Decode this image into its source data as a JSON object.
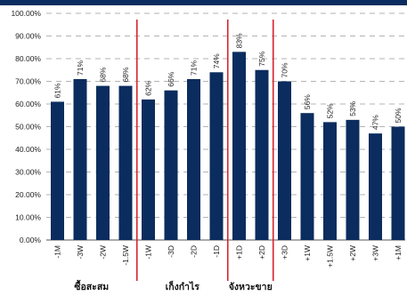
{
  "accent_color": "#0b2c5e",
  "separator_color": "#d9232e",
  "chart_data": {
    "type": "bar",
    "title": "",
    "xlabel": "",
    "ylabel": "",
    "ylim": [
      0,
      100
    ],
    "yticks": [
      0,
      10,
      20,
      30,
      40,
      50,
      60,
      70,
      80,
      90,
      100
    ],
    "ytick_labels": [
      "0.00%",
      "10.00%",
      "20.00%",
      "30.00%",
      "40.00%",
      "50.00%",
      "60.00%",
      "70.00%",
      "80.00%",
      "90.00%",
      "100.00%"
    ],
    "grid": "horizontal dashed",
    "bar_color": "#0b2c5e",
    "categories": [
      "-1M",
      "-3W",
      "-2W",
      "-1.5W",
      "-1W",
      "-3D",
      "-2D",
      "-1D",
      "+1D",
      "+2D",
      "+3D",
      "+1W",
      "+1.5W",
      "+2W",
      "+3W",
      "+1M"
    ],
    "values": [
      61,
      71,
      68,
      68,
      62,
      66,
      71,
      74,
      83,
      75,
      70,
      56,
      52,
      53,
      47,
      50
    ],
    "data_labels": [
      "61%",
      "71%",
      "68%",
      "68%",
      "62%",
      "66%",
      "71%",
      "74%",
      "83%",
      "75%",
      "70%",
      "56%",
      "52%",
      "53%",
      "47%",
      "50%"
    ],
    "group_separators_after_index": [
      3,
      7,
      9
    ],
    "group_labels": [
      {
        "text": "ซื้อสะสม",
        "start": 0,
        "end": 3
      },
      {
        "text": "เก็งกำไร",
        "start": 4,
        "end": 7
      },
      {
        "text": "จังหวะขาย",
        "start": 8,
        "end": 9
      }
    ]
  }
}
